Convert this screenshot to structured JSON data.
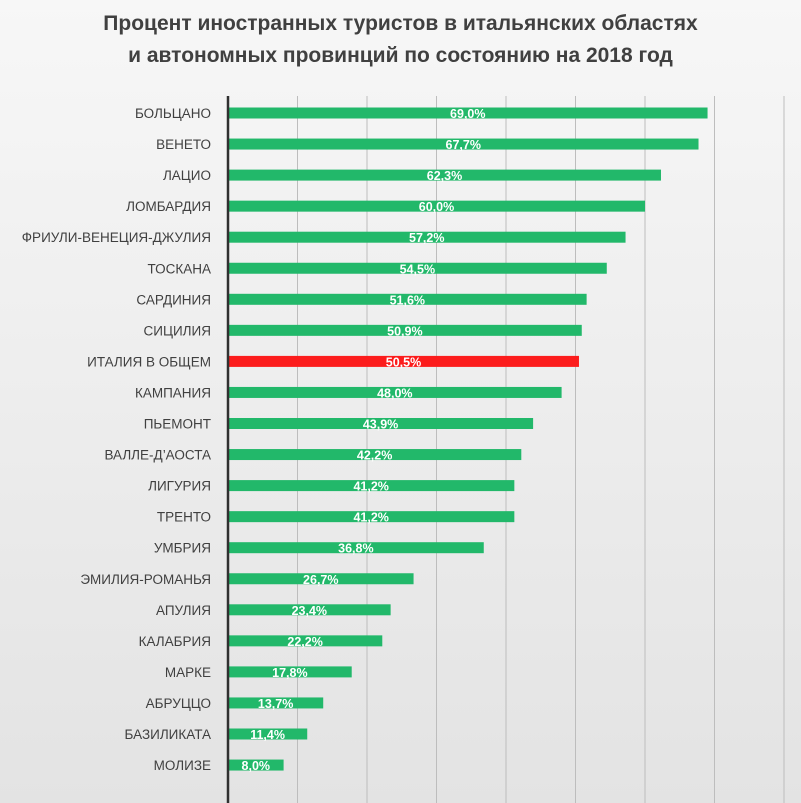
{
  "title_lines": [
    "Процент иностранных туристов в итальянских областях",
    "и автономных провинций по состоянию на 2018 год"
  ],
  "colors": {
    "bar": "#22b86a",
    "highlight": "#fc1c1c",
    "label": "#404040",
    "value_text": "#ffffff",
    "grid": "#bdbdbd",
    "axis": "#303030"
  },
  "chart_data": {
    "type": "bar",
    "orientation": "horizontal",
    "title": "Процент иностранных туристов в итальянских областях и автономных провинций по состоянию на 2018 год",
    "xlim": [
      0,
      80
    ],
    "grid": true,
    "highlight_category": "ИТАЛИЯ В ОБЩЕМ",
    "categories": [
      "БОЛЬЦАНО",
      "ВЕНЕТО",
      "ЛАЦИО",
      "ЛОМБАРДИЯ",
      "ФРИУЛИ-ВЕНЕЦИЯ-ДЖУЛИЯ",
      "ТОСКАНА",
      "САРДИНИЯ",
      "СИЦИЛИЯ",
      "ИТАЛИЯ В ОБЩЕМ",
      "КАМПАНИЯ",
      "ПЬЕМОНТ",
      "ВАЛЛЕ-Д’АОСТА",
      "ЛИГУРИЯ",
      "ТРЕНТО",
      "УМБРИЯ",
      "ЭМИЛИЯ-РОМАНЬЯ",
      "АПУЛИЯ",
      "КАЛАБРИЯ",
      "МАРКЕ",
      "АБРУЦЦО",
      "БАЗИЛИКАТА",
      "МОЛИЗЕ"
    ],
    "values": [
      69.0,
      67.7,
      62.3,
      60.0,
      57.2,
      54.5,
      51.6,
      50.9,
      50.5,
      48.0,
      43.9,
      42.2,
      41.2,
      41.2,
      36.8,
      26.7,
      23.4,
      22.2,
      17.8,
      13.7,
      11.4,
      8.0
    ],
    "value_labels": [
      "69,0%",
      "67,7%",
      "62,3%",
      "60,0%",
      "57,2%",
      "54,5%",
      "51,6%",
      "50,9%",
      "50,5%",
      "48,0%",
      "43,9%",
      "42,2%",
      "41,2%",
      "41,2%",
      "36,8%",
      "26,7%",
      "23,4%",
      "22,2%",
      "17,8%",
      "13,7%",
      "11,4%",
      "8,0%"
    ]
  }
}
